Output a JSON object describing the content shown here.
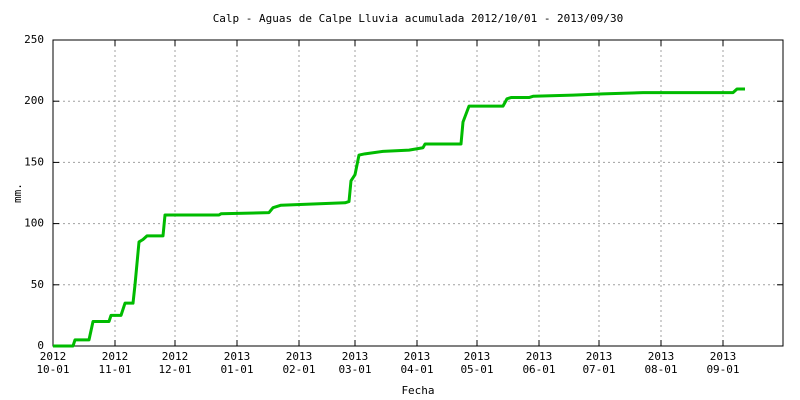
{
  "chart_data": {
    "type": "line",
    "title": "Calp - Aguas de Calpe Lluvia acumulada 2012/10/01 - 2013/09/30",
    "x_label": "Fecha",
    "y_label": "mm.",
    "x": [
      "2012-10-01",
      "2012-10-11",
      "2012-10-12",
      "2012-10-19",
      "2012-10-21",
      "2012-10-29",
      "2012-10-30",
      "2012-11-04",
      "2012-11-06",
      "2012-11-10",
      "2012-11-11",
      "2012-11-13",
      "2012-11-15",
      "2012-11-17",
      "2012-11-25",
      "2012-11-26",
      "2012-12-23",
      "2012-12-24",
      "2013-01-17",
      "2013-01-19",
      "2013-01-23",
      "2013-02-08",
      "2013-02-24",
      "2013-02-26",
      "2013-02-27",
      "2013-03-01",
      "2013-03-03",
      "2013-03-06",
      "2013-03-15",
      "2013-03-28",
      "2013-04-04",
      "2013-04-05",
      "2013-04-23",
      "2013-04-24",
      "2013-04-27",
      "2013-05-14",
      "2013-05-16",
      "2013-05-18",
      "2013-05-27",
      "2013-05-29",
      "2013-06-18",
      "2013-07-03",
      "2013-07-23",
      "2013-09-06",
      "2013-09-08",
      "2013-09-12"
    ],
    "series": [
      {
        "name": "Lluvia acumulada",
        "color": "#00bb00",
        "values": [
          0,
          0,
          5,
          5,
          20,
          20,
          25,
          25,
          35,
          35,
          50,
          85,
          87,
          90,
          90,
          107,
          107,
          108,
          109,
          113,
          115,
          116,
          117,
          118,
          135,
          140,
          156,
          157,
          159,
          160,
          162,
          165,
          165,
          183,
          196,
          196,
          202,
          203,
          203,
          204,
          205,
          206,
          207,
          207,
          210,
          210
        ]
      }
    ],
    "xlim": [
      "2012-10-01",
      "2013-10-01"
    ],
    "xticks": [
      {
        "value": "2012-10-01",
        "label": [
          "2012",
          "10-01"
        ]
      },
      {
        "value": "2012-11-01",
        "label": [
          "2012",
          "11-01"
        ]
      },
      {
        "value": "2012-12-01",
        "label": [
          "2012",
          "12-01"
        ]
      },
      {
        "value": "2013-01-01",
        "label": [
          "2013",
          "01-01"
        ]
      },
      {
        "value": "2013-02-01",
        "label": [
          "2013",
          "02-01"
        ]
      },
      {
        "value": "2013-03-01",
        "label": [
          "2013",
          "03-01"
        ]
      },
      {
        "value": "2013-04-01",
        "label": [
          "2013",
          "04-01"
        ]
      },
      {
        "value": "2013-05-01",
        "label": [
          "2013",
          "05-01"
        ]
      },
      {
        "value": "2013-06-01",
        "label": [
          "2013",
          "06-01"
        ]
      },
      {
        "value": "2013-07-01",
        "label": [
          "2013",
          "07-01"
        ]
      },
      {
        "value": "2013-08-01",
        "label": [
          "2013",
          "08-01"
        ]
      },
      {
        "value": "2013-09-01",
        "label": [
          "2013",
          "09-01"
        ]
      }
    ],
    "ylim": [
      0,
      250
    ],
    "yticks": [
      0,
      50,
      100,
      150,
      200,
      250
    ],
    "grid": true
  }
}
